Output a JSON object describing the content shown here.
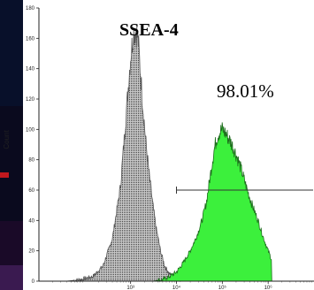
{
  "chart_data": {
    "type": "area",
    "title": "SSEA-4",
    "xlabel": "",
    "ylabel": "Count",
    "x_scale": "log",
    "xlim": [
      10,
      10000000
    ],
    "ylim": [
      0,
      180
    ],
    "x_ticks": [
      {
        "value": 1000,
        "label": "10³"
      },
      {
        "value": 10000,
        "label": "10⁴"
      },
      {
        "value": 100000,
        "label": "10⁵"
      },
      {
        "value": 1000000,
        "label": "10⁶"
      }
    ],
    "y_ticks": [
      0,
      20,
      40,
      60,
      80,
      100,
      120,
      140,
      160,
      180
    ],
    "gate": {
      "label": "98.01%",
      "x_start": 10000,
      "x_end": 10000000,
      "y": 60
    },
    "colors": {
      "control_fill": "#c8c8c8",
      "control_line": "#555555",
      "stained_fill": "#3cf03c",
      "stained_line": "#1e6e1e"
    },
    "series": [
      {
        "x": [
          40,
          80,
          150,
          250,
          400,
          600,
          800,
          1000,
          1150,
          1300,
          1450,
          1600,
          1800,
          2100,
          2500,
          3000,
          3600,
          4500,
          5500,
          7000,
          9000,
          12000,
          15000
        ],
        "values": [
          0,
          1,
          3,
          10,
          28,
          62,
          110,
          148,
          163,
          165,
          160,
          142,
          120,
          95,
          72,
          52,
          35,
          20,
          10,
          5,
          2,
          1,
          0
        ]
      },
      {
        "x": [
          3000,
          5000,
          7000,
          10000,
          14000,
          20000,
          28000,
          36000,
          45000,
          55000,
          65000,
          75000,
          85000,
          100000,
          120000,
          150000,
          180000,
          220000,
          280000,
          350000,
          450000,
          600000,
          800000,
          1000000,
          1200000
        ],
        "values": [
          0,
          1,
          3,
          6,
          12,
          20,
          30,
          40,
          52,
          70,
          85,
          94,
          98,
          100,
          97,
          92,
          87,
          80,
          70,
          60,
          50,
          40,
          28,
          20,
          14
        ]
      }
    ]
  }
}
